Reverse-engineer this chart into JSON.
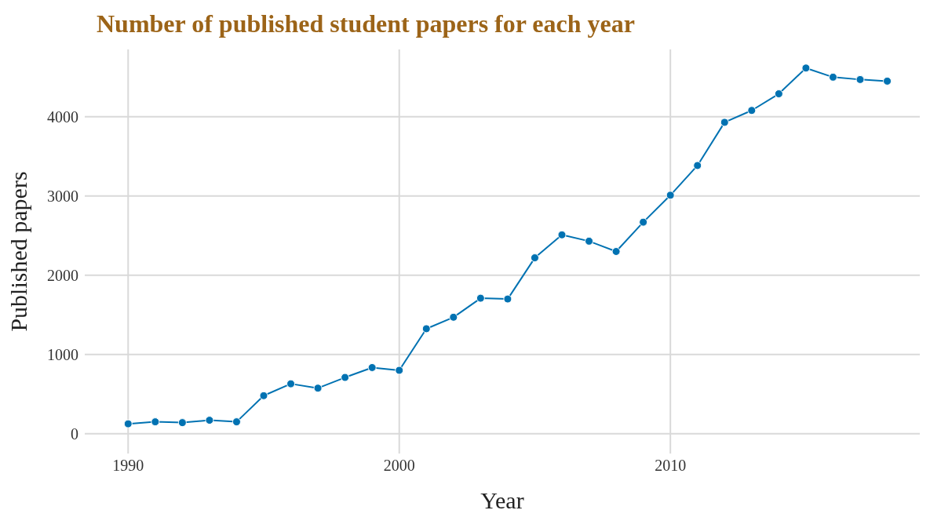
{
  "chart_data": {
    "type": "line",
    "title": "Number of published student papers for each year",
    "xlabel": "Year",
    "ylabel": "Published papers",
    "x": [
      1990,
      1991,
      1992,
      1993,
      1994,
      1995,
      1996,
      1997,
      1998,
      1999,
      2000,
      2001,
      2002,
      2003,
      2004,
      2005,
      2006,
      2007,
      2008,
      2009,
      2010,
      2011,
      2012,
      2013,
      2014,
      2015,
      2016,
      2017,
      2018
    ],
    "series": [
      {
        "color": "#0072b2",
        "values": [
          125,
          150,
          140,
          170,
          150,
          480,
          630,
          575,
          710,
          835,
          800,
          1325,
          1470,
          1710,
          1700,
          2220,
          2510,
          2430,
          2300,
          2670,
          3010,
          3385,
          3930,
          4080,
          4290,
          4615,
          4500,
          4470,
          4450
        ]
      }
    ],
    "xlim": [
      1988.4,
      2019.2
    ],
    "xticks": [
      1990,
      2000,
      2010
    ],
    "ylim": [
      -250,
      4850
    ],
    "yticks": [
      0,
      1000,
      2000,
      3000,
      4000
    ],
    "grid": true,
    "marker": "circle",
    "line_style": "solid",
    "legend": false
  }
}
